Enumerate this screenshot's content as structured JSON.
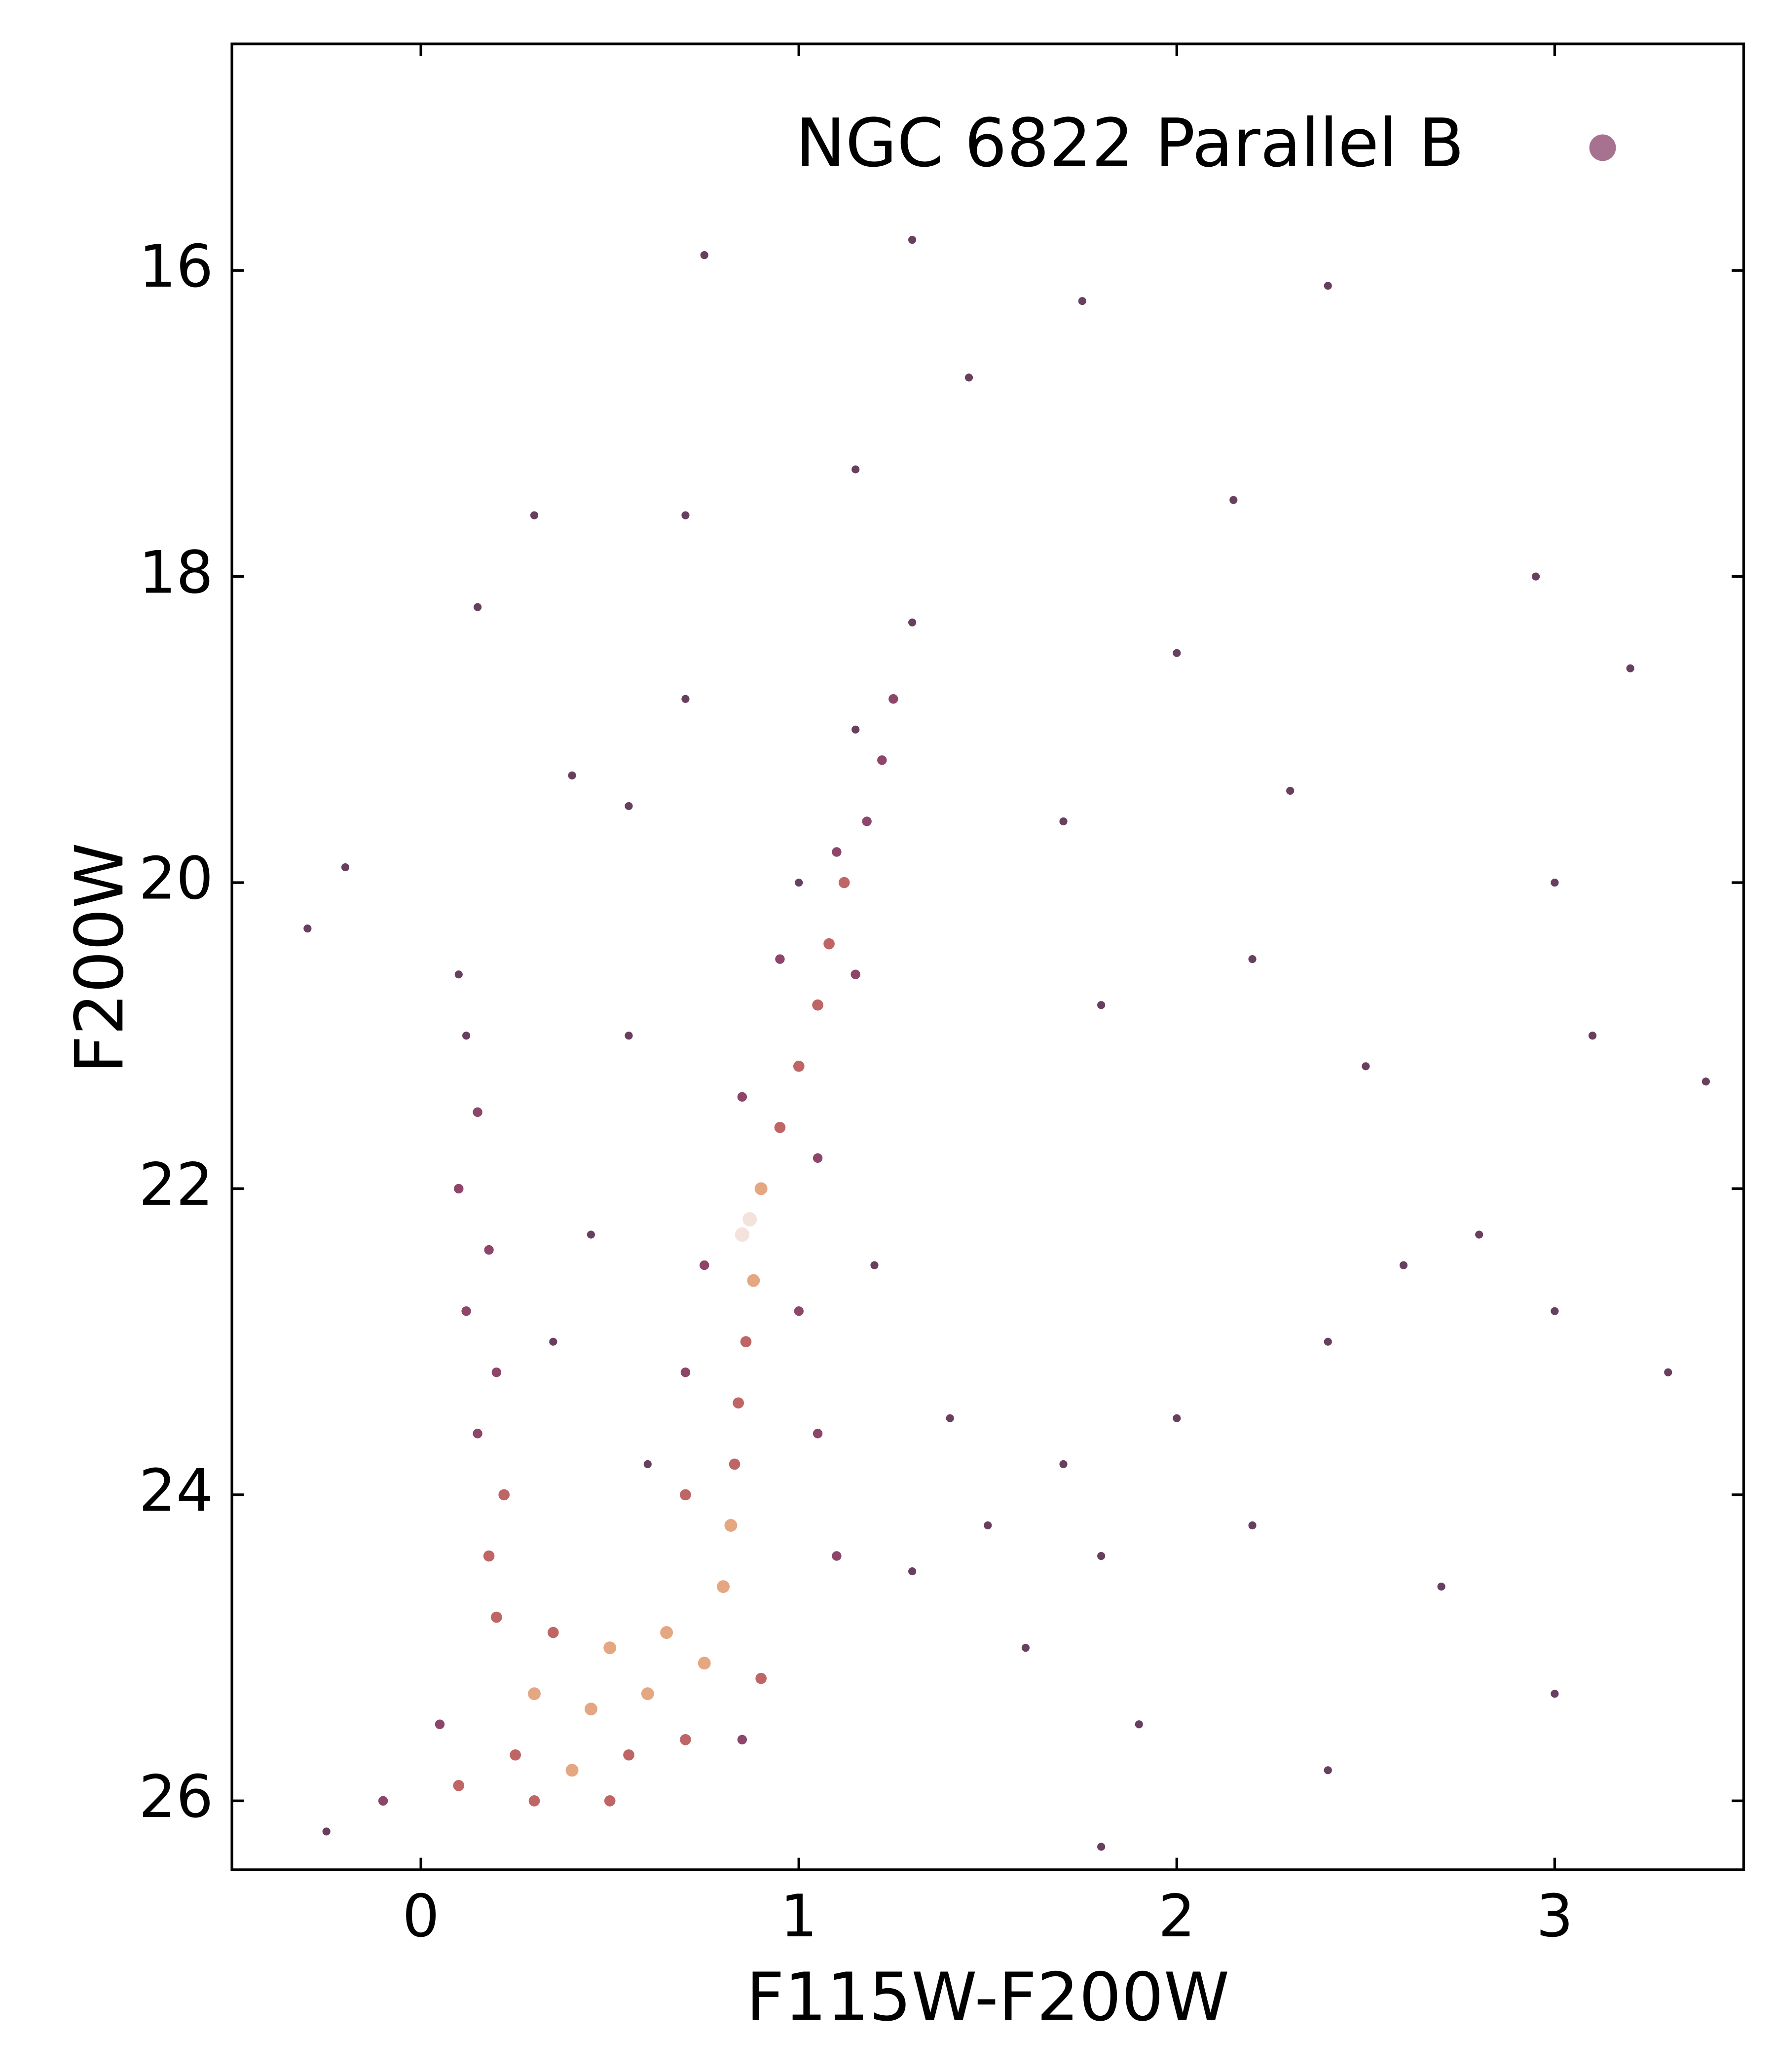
{
  "chart_data": {
    "type": "scatter",
    "xlabel": "F115W-F200W",
    "ylabel": "F200W",
    "xlim": [
      -0.5,
      3.5
    ],
    "ylim": [
      14.52,
      26.45
    ],
    "y_inverted": true,
    "xticks": [
      0,
      1,
      2,
      3
    ],
    "yticks": [
      16,
      18,
      20,
      22,
      24,
      26
    ],
    "legend_position": "upper right",
    "density_palette": [
      "#4e1d42",
      "#7a2550",
      "#b44a4a",
      "#e0976c",
      "#f2ddd6"
    ],
    "series": [
      {
        "name": "NGC 6822 Parallel B",
        "color": "#a7728f",
        "x": [
          1.3,
          1.25,
          1.22,
          1.18,
          1.12,
          1.08,
          1.05,
          1.0,
          0.95,
          0.9,
          0.87,
          0.85,
          0.88,
          0.86,
          0.84,
          0.83,
          0.82,
          0.8,
          1.15,
          1.1,
          0.95,
          1.15,
          0.85,
          1.05,
          0.75,
          1.0,
          0.7,
          1.05,
          0.7,
          1.1,
          0.1,
          0.12,
          0.15,
          0.1,
          0.18,
          0.12,
          0.2,
          0.15,
          0.22,
          0.18,
          0.2,
          0.35,
          0.5,
          0.65,
          0.3,
          0.45,
          0.6,
          0.75,
          0.25,
          0.4,
          0.55,
          0.7,
          0.1,
          0.3,
          0.5,
          0.05,
          0.9,
          0.85,
          -0.1,
          -0.25,
          1.3,
          1.5,
          1.7,
          1.8,
          1.6,
          1.4,
          2.0,
          1.9,
          2.2,
          2.4,
          2.6,
          2.8,
          3.0,
          2.5,
          2.2,
          1.8,
          1.7,
          2.3,
          2.0,
          3.0,
          3.1,
          3.3,
          2.7,
          3.0,
          2.4,
          1.8,
          3.2,
          2.4,
          1.75,
          1.45,
          0.75,
          1.15,
          0.7,
          0.3,
          0.15,
          -0.2,
          0.4,
          0.55,
          -0.3,
          0.7,
          3.4,
          2.95,
          1.3,
          2.15,
          1.0,
          0.45,
          0.55,
          0.35,
          0.6,
          1.2
        ],
        "values": [
          18.3,
          18.8,
          19.2,
          19.6,
          20.0,
          20.4,
          20.8,
          21.2,
          21.6,
          22.0,
          22.2,
          22.3,
          22.6,
          23.0,
          23.4,
          23.8,
          24.2,
          24.6,
          19.0,
          19.8,
          20.5,
          20.6,
          21.4,
          21.8,
          22.5,
          22.8,
          23.2,
          23.6,
          24.0,
          24.4,
          20.6,
          21.0,
          21.5,
          22.0,
          22.4,
          22.8,
          23.2,
          23.6,
          24.0,
          24.4,
          24.8,
          24.9,
          25.0,
          24.9,
          25.3,
          25.4,
          25.3,
          25.1,
          25.7,
          25.8,
          25.7,
          25.6,
          25.9,
          26.0,
          26.0,
          25.5,
          25.2,
          25.6,
          26.0,
          26.2,
          24.5,
          24.2,
          23.8,
          24.4,
          25.0,
          23.5,
          23.5,
          25.5,
          24.2,
          23.0,
          22.5,
          22.3,
          22.8,
          21.2,
          20.5,
          20.8,
          19.6,
          19.4,
          18.5,
          20.0,
          21.0,
          23.2,
          24.6,
          25.3,
          25.8,
          26.3,
          18.6,
          16.1,
          16.2,
          16.7,
          15.9,
          17.3,
          17.6,
          17.6,
          18.2,
          19.9,
          19.3,
          19.5,
          20.3,
          18.8,
          21.3,
          18.0,
          15.8,
          17.5,
          20.0,
          22.3,
          21.0,
          23.0,
          23.8,
          22.5
        ],
        "density": [
          0,
          1,
          1,
          1,
          2,
          2,
          2,
          2,
          2,
          3,
          4,
          4,
          3,
          2,
          2,
          2,
          3,
          3,
          0,
          1,
          1,
          1,
          1,
          1,
          1,
          1,
          1,
          1,
          2,
          1,
          0,
          0,
          1,
          1,
          1,
          1,
          1,
          1,
          2,
          2,
          2,
          2,
          3,
          3,
          3,
          3,
          3,
          3,
          2,
          3,
          2,
          2,
          2,
          2,
          2,
          1,
          2,
          1,
          1,
          0,
          0,
          0,
          0,
          0,
          0,
          0,
          0,
          0,
          0,
          0,
          0,
          0,
          0,
          0,
          0,
          0,
          0,
          0,
          0,
          0,
          0,
          0,
          0,
          0,
          0,
          0,
          0,
          0,
          0,
          0,
          0,
          0,
          0,
          0,
          0,
          0,
          0,
          0,
          0,
          0,
          0,
          0,
          0,
          0,
          0,
          0,
          0,
          0,
          0,
          0
        ]
      }
    ]
  }
}
